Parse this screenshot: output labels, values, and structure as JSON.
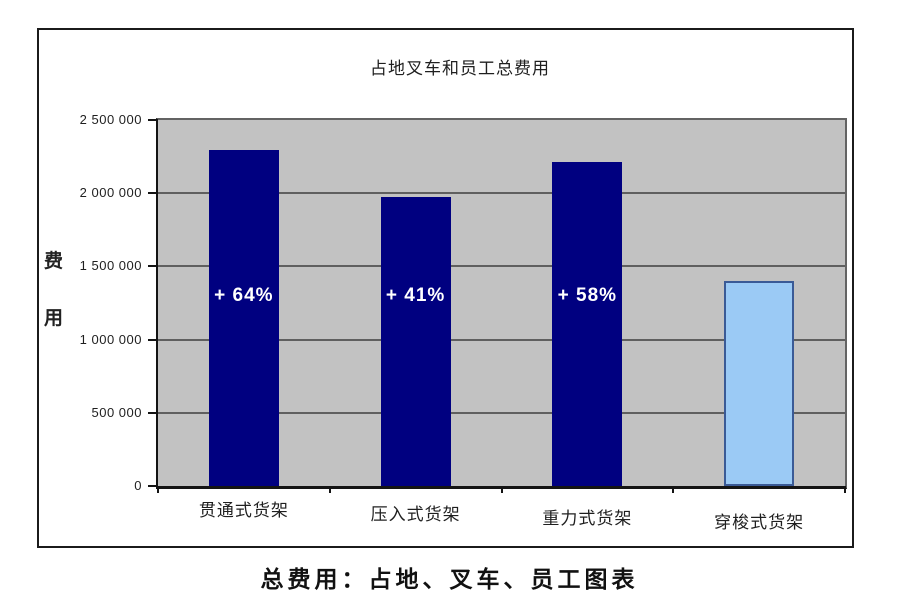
{
  "chart": {
    "title": "占地叉车和员工总费用",
    "caption": "总费用：占地、叉车、员工图表"
  },
  "y_axis": {
    "label": "费用",
    "chars": [
      "费",
      "用"
    ]
  },
  "chart_data": {
    "type": "bar",
    "title": "占地叉车和员工总费用",
    "caption": "总费用：占地、叉车、员工图表",
    "xlabel": "",
    "ylabel": "费用",
    "ylim": [
      0,
      2500000
    ],
    "ytick_interval": 500000,
    "ytick_labels": [
      "0",
      "500 000",
      "1 000 000",
      "1 500 000",
      "2 000 000",
      "2 500 000"
    ],
    "grid": true,
    "plot_background": "#c2c2c2",
    "categories": [
      "贯通式货架",
      "压入式货架",
      "重力式货架",
      "穿梭式货架"
    ],
    "values": [
      2296000,
      1974000,
      2212000,
      1400000
    ],
    "bar_labels": [
      "+ 64%",
      "+ 41%",
      "+ 58%",
      ""
    ],
    "bar_colors": [
      "#000080",
      "#000080",
      "#000080",
      "#9bcaf5"
    ]
  },
  "colors": {
    "bar_dark": "#000080",
    "bar_light": "#9bcaf5",
    "bar_light_border": "#3a5a96",
    "plot_bg": "#c2c2c2",
    "gridline": "#5f5f5f",
    "axis": "#141414",
    "frame_border": "#1b1b1b",
    "text": "#1f1f1f",
    "bar_label_text": "#ffffff"
  }
}
